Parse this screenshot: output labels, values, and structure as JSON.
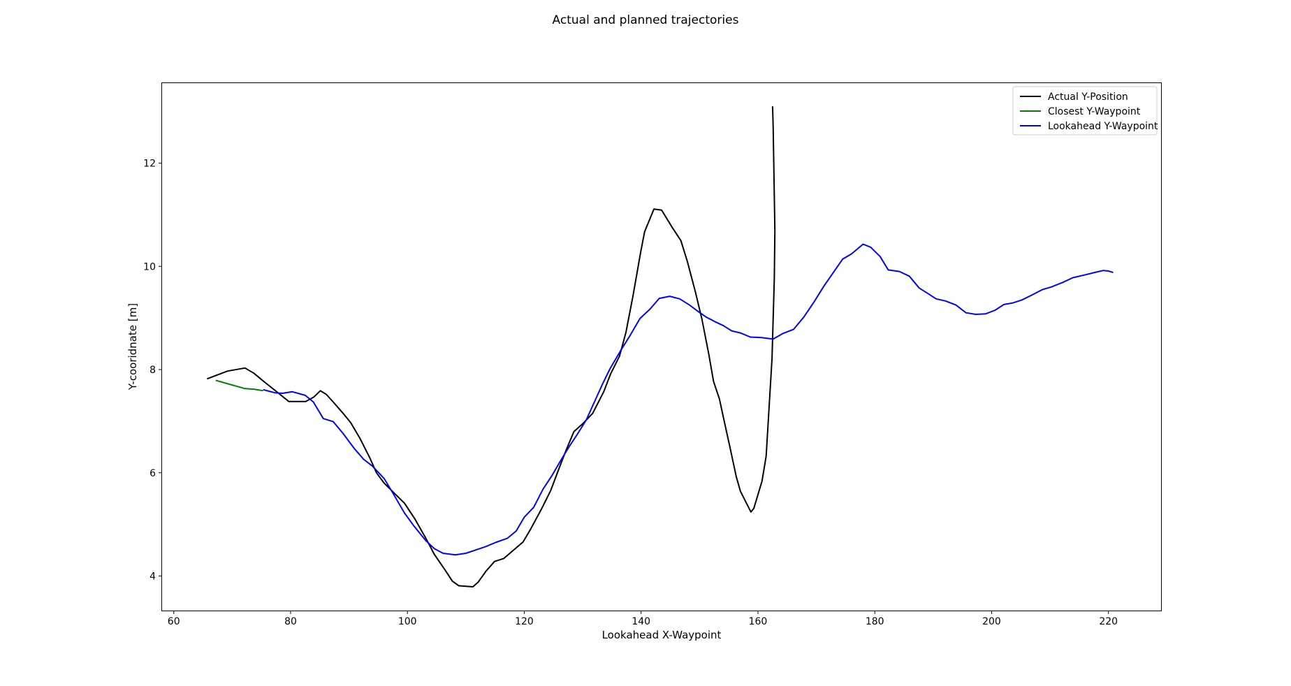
{
  "chart_data": {
    "type": "line",
    "title": "Actual and planned trajectories",
    "xlabel": "Lookahead X-Waypoint",
    "ylabel": "Y-cooridnate [m]",
    "xlim": [
      58,
      229
    ],
    "ylim": [
      3.33,
      13.55
    ],
    "xticks": [
      60,
      80,
      100,
      120,
      140,
      160,
      180,
      200,
      220
    ],
    "yticks": [
      4,
      6,
      8,
      10,
      12
    ],
    "grid": false,
    "legend_position": "top-right",
    "series": [
      {
        "name": "Actual Y-Position",
        "color": "#000000",
        "points": [
          [
            65.7,
            7.82
          ],
          [
            69.2,
            7.97
          ],
          [
            72.2,
            8.03
          ],
          [
            73.7,
            7.93
          ],
          [
            75.3,
            7.78
          ],
          [
            77.3,
            7.6
          ],
          [
            79.7,
            7.38
          ],
          [
            80.5,
            7.38
          ],
          [
            82.6,
            7.38
          ],
          [
            84.0,
            7.47
          ],
          [
            85.1,
            7.59
          ],
          [
            86.1,
            7.52
          ],
          [
            87.3,
            7.37
          ],
          [
            89.0,
            7.15
          ],
          [
            90.3,
            6.97
          ],
          [
            91.9,
            6.66
          ],
          [
            93.6,
            6.28
          ],
          [
            94.7,
            6.0
          ],
          [
            96.0,
            5.8
          ],
          [
            97.6,
            5.62
          ],
          [
            99.5,
            5.41
          ],
          [
            101.3,
            5.1
          ],
          [
            103.2,
            4.72
          ],
          [
            104.6,
            4.42
          ],
          [
            106.3,
            4.14
          ],
          [
            107.7,
            3.9
          ],
          [
            108.8,
            3.81
          ],
          [
            111.2,
            3.79
          ],
          [
            112.1,
            3.88
          ],
          [
            113.5,
            4.1
          ],
          [
            114.9,
            4.28
          ],
          [
            116.5,
            4.34
          ],
          [
            119.8,
            4.66
          ],
          [
            121.0,
            4.89
          ],
          [
            123.0,
            5.31
          ],
          [
            124.5,
            5.65
          ],
          [
            126.0,
            6.1
          ],
          [
            127.2,
            6.45
          ],
          [
            128.5,
            6.8
          ],
          [
            130.0,
            6.95
          ],
          [
            131.7,
            7.15
          ],
          [
            133.6,
            7.57
          ],
          [
            134.8,
            7.92
          ],
          [
            136.3,
            8.26
          ],
          [
            137.4,
            8.72
          ],
          [
            138.6,
            9.42
          ],
          [
            139.9,
            10.26
          ],
          [
            140.6,
            10.67
          ],
          [
            142.2,
            11.11
          ],
          [
            143.5,
            11.09
          ],
          [
            145.4,
            10.74
          ],
          [
            146.8,
            10.5
          ],
          [
            147.9,
            10.1
          ],
          [
            149.3,
            9.5
          ],
          [
            150.4,
            8.98
          ],
          [
            151.6,
            8.29
          ],
          [
            152.4,
            7.77
          ],
          [
            153.4,
            7.43
          ],
          [
            154.2,
            7.01
          ],
          [
            155.2,
            6.5
          ],
          [
            156.3,
            5.92
          ],
          [
            157.0,
            5.64
          ],
          [
            158.8,
            5.24
          ],
          [
            159.3,
            5.31
          ],
          [
            160.7,
            5.84
          ],
          [
            161.4,
            6.32
          ],
          [
            162.4,
            8.21
          ],
          [
            162.8,
            9.77
          ],
          [
            162.9,
            10.7
          ],
          [
            162.6,
            12.73
          ],
          [
            162.5,
            13.1
          ]
        ]
      },
      {
        "name": "Closest Y-Waypoint",
        "color": "#008000",
        "points": [
          [
            67.2,
            7.79
          ],
          [
            72.2,
            7.63
          ],
          [
            73.7,
            7.62
          ],
          [
            75.3,
            7.59
          ]
        ]
      },
      {
        "name": "Lookahead Y-Waypoint",
        "color": "#0000ff",
        "points": [
          [
            75.3,
            7.61
          ],
          [
            77.3,
            7.55
          ],
          [
            78.6,
            7.54
          ],
          [
            80.3,
            7.57
          ],
          [
            82.5,
            7.5
          ],
          [
            83.9,
            7.37
          ],
          [
            85.6,
            7.05
          ],
          [
            87.3,
            6.99
          ],
          [
            89.0,
            6.76
          ],
          [
            90.9,
            6.47
          ],
          [
            92.5,
            6.26
          ],
          [
            94.0,
            6.13
          ],
          [
            96.0,
            5.89
          ],
          [
            97.5,
            5.61
          ],
          [
            99.5,
            5.22
          ],
          [
            101.1,
            4.97
          ],
          [
            103.1,
            4.69
          ],
          [
            104.6,
            4.53
          ],
          [
            106.1,
            4.44
          ],
          [
            108.2,
            4.41
          ],
          [
            110.0,
            4.44
          ],
          [
            111.6,
            4.5
          ],
          [
            113.4,
            4.57
          ],
          [
            115.1,
            4.65
          ],
          [
            117.1,
            4.73
          ],
          [
            118.6,
            4.87
          ],
          [
            120.0,
            5.14
          ],
          [
            121.6,
            5.33
          ],
          [
            123.2,
            5.68
          ],
          [
            124.7,
            5.94
          ],
          [
            126.3,
            6.25
          ],
          [
            127.7,
            6.51
          ],
          [
            129.1,
            6.75
          ],
          [
            130.6,
            7.02
          ],
          [
            132.0,
            7.37
          ],
          [
            133.4,
            7.72
          ],
          [
            134.7,
            8.02
          ],
          [
            136.5,
            8.37
          ],
          [
            138.0,
            8.64
          ],
          [
            139.8,
            8.99
          ],
          [
            141.5,
            9.17
          ],
          [
            143.1,
            9.38
          ],
          [
            144.9,
            9.42
          ],
          [
            146.6,
            9.37
          ],
          [
            148.3,
            9.25
          ],
          [
            149.7,
            9.13
          ],
          [
            151.1,
            9.02
          ],
          [
            152.6,
            8.93
          ],
          [
            154.1,
            8.85
          ],
          [
            155.5,
            8.75
          ],
          [
            157.0,
            8.71
          ],
          [
            158.7,
            8.63
          ],
          [
            160.6,
            8.62
          ],
          [
            162.6,
            8.59
          ],
          [
            164.3,
            8.7
          ],
          [
            166.1,
            8.78
          ],
          [
            167.8,
            9.01
          ],
          [
            169.6,
            9.31
          ],
          [
            171.3,
            9.62
          ],
          [
            172.9,
            9.88
          ],
          [
            174.5,
            10.14
          ],
          [
            176.0,
            10.24
          ],
          [
            178.0,
            10.43
          ],
          [
            179.3,
            10.37
          ],
          [
            180.9,
            10.19
          ],
          [
            182.3,
            9.93
          ],
          [
            184.2,
            9.9
          ],
          [
            185.9,
            9.81
          ],
          [
            187.6,
            9.58
          ],
          [
            189.0,
            9.48
          ],
          [
            190.5,
            9.37
          ],
          [
            192.1,
            9.33
          ],
          [
            193.9,
            9.25
          ],
          [
            195.6,
            9.1
          ],
          [
            197.3,
            9.07
          ],
          [
            199.0,
            9.08
          ],
          [
            200.6,
            9.15
          ],
          [
            202.1,
            9.26
          ],
          [
            203.6,
            9.29
          ],
          [
            205.2,
            9.35
          ],
          [
            207.0,
            9.45
          ],
          [
            208.7,
            9.55
          ],
          [
            210.2,
            9.6
          ],
          [
            212.2,
            9.69
          ],
          [
            213.9,
            9.78
          ],
          [
            215.8,
            9.83
          ],
          [
            217.6,
            9.88
          ],
          [
            219.1,
            9.92
          ],
          [
            220.0,
            9.91
          ],
          [
            220.8,
            9.88
          ]
        ]
      }
    ]
  }
}
